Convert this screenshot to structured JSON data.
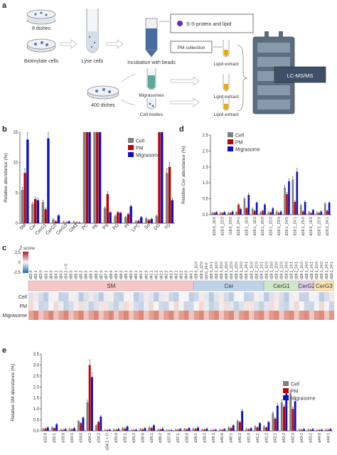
{
  "panel_a": {
    "label": "a",
    "dishes_top": "8 dishes",
    "dishes_bottom": "400 dishes",
    "biotinylate": "Biotinylate cells",
    "lyse": "Lyse cells",
    "incubation": "Incubation with beads",
    "ss_protein": "S-S-protein and lipid",
    "pm_collection": "PM collection",
    "lipid_extract": "Lipid extract",
    "migrasomes": "Migrasomes",
    "cell_bodies": "Cell bodies",
    "lcms": "LC-MS/MS"
  },
  "chart_data": [
    {
      "panel": "b",
      "type": "bar",
      "ylabel": "Relative abundance (%)",
      "ylim": [
        0,
        15
      ],
      "yticks": [
        0,
        5,
        10,
        15
      ],
      "categories": [
        "SM",
        "Cer",
        "CerG1",
        "CerG2",
        "CerG3",
        "GM3",
        "PC",
        "PE",
        "PS",
        "PG",
        "PI",
        "LPC",
        "So",
        "DG",
        "TG"
      ],
      "series": [
        {
          "name": "Cell",
          "color": "#808080",
          "values": [
            5.5,
            3.2,
            3.5,
            0.6,
            0.2,
            0.2,
            15,
            15,
            2.5,
            1.2,
            1.0,
            0.3,
            0.8,
            1.2,
            8.3
          ]
        },
        {
          "name": "PM",
          "color": "#c00000",
          "values": [
            8.3,
            4.0,
            2.3,
            0.3,
            0.1,
            0.1,
            15,
            15,
            4.8,
            1.8,
            1.5,
            0.4,
            0.5,
            15,
            9.3
          ]
        },
        {
          "name": "Migrasome",
          "color": "#1010c0",
          "values": [
            13.8,
            3.8,
            14.0,
            1.3,
            0.3,
            0.1,
            15,
            15,
            1.8,
            1.7,
            2.8,
            1.0,
            0.7,
            15,
            3.8
          ]
        }
      ]
    },
    {
      "panel": "d",
      "type": "bar",
      "ylabel": "Relative Cer abundance (%)",
      "ylim": [
        0,
        2.5
      ],
      "yticks": [
        0,
        0.5,
        1.0,
        1.5,
        2.0,
        2.5
      ],
      "categories": [
        "d18:0_16:0",
        "d18:0_22:0",
        "t18:0_24:0",
        "d18:0_24:1",
        "d18:1_16:0",
        "d18:1_18:0",
        "d18:1_20:0",
        "d18:1_22:0",
        "d18:1_23:0",
        "d18:1_24:0",
        "d18:1_24:1",
        "d18:1_25:0",
        "d18:2_16:0",
        "d18:2_22:0",
        "d18:2_24:1"
      ],
      "series": [
        {
          "name": "Cell",
          "color": "#808080",
          "values": [
            0.05,
            0.05,
            0.05,
            0.08,
            0.5,
            0.18,
            0.07,
            0.07,
            0.1,
            0.85,
            1.1,
            0.3,
            0.08,
            0.07,
            0.35
          ]
        },
        {
          "name": "PM",
          "color": "#c00000",
          "values": [
            0.05,
            0.05,
            0.05,
            0.32,
            0.2,
            0.12,
            0.12,
            0.07,
            0.05,
            0.65,
            0.4,
            0.1,
            0.05,
            0.05,
            0.12
          ]
        },
        {
          "name": "Migrasome",
          "color": "#1010c0",
          "values": [
            0.08,
            0.08,
            0.1,
            0.18,
            0.62,
            0.38,
            0.32,
            0.2,
            0.1,
            1.05,
            1.35,
            0.4,
            0.15,
            0.1,
            0.38
          ]
        }
      ]
    },
    {
      "panel": "c",
      "type": "heatmap",
      "legend_title": "Z score",
      "legend_ticks": [
        "2.5",
        "0",
        "-2.5"
      ],
      "rows": [
        "Cell",
        "PM",
        "Migrasome"
      ],
      "columns": [
        "d32:0",
        "d32:1",
        "d33:0",
        "d33:1",
        "d34:0",
        "d34:1",
        "d34:2",
        "d34:2 + O",
        "d35:0",
        "d35:1",
        "d35:2",
        "d36:0",
        "d36:1",
        "d36:2",
        "d37:0",
        "d37:1",
        "d38:0",
        "d38:1",
        "d38:2",
        "d39:1",
        "d40:0",
        "d40:1",
        "d40:2",
        "d41:0",
        "d41:1",
        "d41:2",
        "d42:1",
        "d42:2",
        "d42:3",
        "d43:1",
        "d43:2",
        "d44:0",
        "d44:1",
        "d18:0_16:0",
        "d18:0_22:0",
        "t18:0_24:0",
        "d18:0_24:1",
        "d18:1_16:0",
        "d18:1_18:0",
        "d18:1_20:0",
        "d18:1_22:0",
        "d18:1_23:0",
        "d18:1_24:0",
        "d18:1_24:1",
        "d18:2_16:0",
        "d18:2_22:0",
        "d18:2_24:1",
        "d18:1_16:0",
        "d18:1_18:0",
        "d18:1_20:0",
        "d18:1_22:0",
        "d18:1_24:0",
        "d18:1_24:1",
        "d18:2_24:1",
        "d18:1_16:0",
        "d18:1_24:0",
        "d18:1_24:1",
        "d18:1_16:0",
        "d18:1_24:0",
        "d18:1_24:1",
        "d18:2_24:1"
      ],
      "groups": [
        {
          "name": "SM",
          "color": "#f7c6c6",
          "count": 33
        },
        {
          "name": "Cer",
          "color": "#bcd3ea",
          "count": 14
        },
        {
          "name": "CerG1",
          "color": "#cfe8c8",
          "count": 7
        },
        {
          "name": "CerG2",
          "color": "#ddd0ea",
          "count": 3
        },
        {
          "name": "CerG3",
          "color": "#fbe3b0",
          "count": 4
        }
      ]
    },
    {
      "panel": "e",
      "type": "bar",
      "ylabel": "Relative SM abundance (%)",
      "ylim": [
        0,
        3.5
      ],
      "yticks": [
        0,
        0.5,
        1.0,
        1.5,
        2.0,
        2.5,
        3.0,
        3.5
      ],
      "categories": [
        "d32:0",
        "d32:1",
        "d33:0",
        "d33:1",
        "d34:0",
        "d34:1",
        "d34:2",
        "d34:2 + O",
        "d35:0",
        "d35:1",
        "d35:2",
        "d36:0",
        "d36:1",
        "d36:2",
        "d37:0",
        "d37:1",
        "d38:0",
        "d38:1",
        "d38:2",
        "d39:1",
        "d40:0",
        "d40:1",
        "d40:2",
        "d41:0",
        "d41:1",
        "d41:2",
        "d42:1",
        "d42:2",
        "d42:3",
        "d43:1",
        "d43:2",
        "d44:0",
        "d44:1"
      ],
      "series": [
        {
          "name": "Cell",
          "color": "#808080",
          "values": [
            0.08,
            0.15,
            0.05,
            0.08,
            0.45,
            1.3,
            0.25,
            0.03,
            0.05,
            0.12,
            0.03,
            0.08,
            0.15,
            0.05,
            0.02,
            0.05,
            0.08,
            0.1,
            0.05,
            0.03,
            0.05,
            0.15,
            0.45,
            0.08,
            0.2,
            0.2,
            0.8,
            1.3,
            1.7,
            0.05,
            0.05,
            0.03,
            0.05
          ]
        },
        {
          "name": "PM",
          "color": "#c00000",
          "values": [
            0.1,
            0.12,
            0.04,
            0.06,
            0.35,
            3.0,
            0.4,
            0.03,
            0.04,
            0.1,
            0.03,
            0.06,
            0.12,
            0.05,
            0.02,
            0.04,
            0.06,
            0.08,
            0.05,
            0.03,
            0.04,
            0.12,
            0.4,
            0.06,
            0.15,
            0.15,
            0.55,
            1.1,
            1.0,
            0.04,
            0.04,
            0.03,
            0.04
          ]
        },
        {
          "name": "Migrasome",
          "color": "#1010c0",
          "values": [
            0.15,
            0.3,
            0.08,
            0.12,
            0.6,
            2.45,
            0.65,
            0.05,
            0.08,
            0.2,
            0.05,
            0.12,
            0.25,
            0.1,
            0.03,
            0.08,
            0.12,
            0.15,
            0.1,
            0.05,
            0.08,
            0.25,
            0.9,
            0.12,
            0.35,
            0.4,
            1.15,
            1.7,
            1.35,
            0.08,
            0.08,
            0.05,
            0.08
          ]
        }
      ]
    }
  ]
}
